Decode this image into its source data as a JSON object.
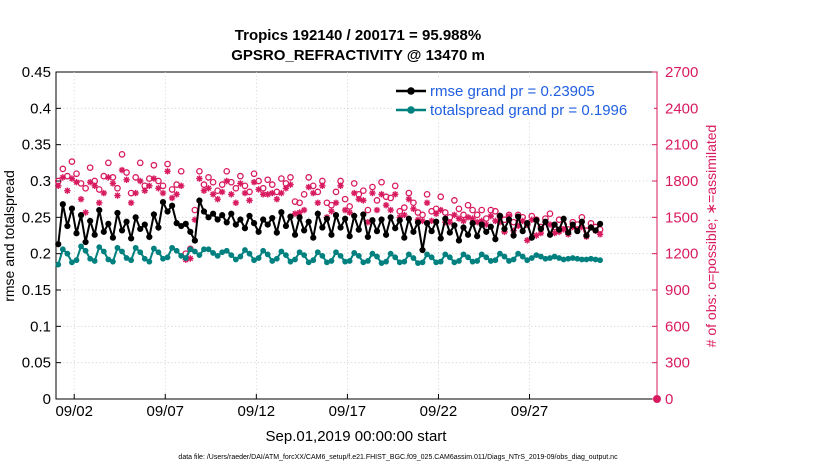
{
  "chart_data": {
    "type": "line",
    "title_line1": "Tropics 192140 / 200171 = 95.988%",
    "title_line2": "GPSRO_REFRACTIVITY @ 13470 m",
    "xlabel": "Sep.01,2019 00:00:00 start",
    "ylabel_left": "rmse and totalspread",
    "ylabel_right": "# of obs: o=possible; ∗=assimilated",
    "footer": "data file: /Users/raeder/DAI/ATM_forcXX/CAM6_setup/f.e21.FHIST_BGC.f09_025.CAM6assim.011/Diags_NTrS_2019-09/obs_diag_output.nc",
    "xlim": [
      0,
      33
    ],
    "ylim_left": [
      0,
      0.45
    ],
    "ylim_right": [
      0,
      2700
    ],
    "x_ticks": [
      1,
      6,
      11,
      16,
      21,
      26
    ],
    "x_tick_labels": [
      "09/02",
      "09/07",
      "09/12",
      "09/17",
      "09/22",
      "09/27"
    ],
    "y_left_ticks": [
      0,
      0.05,
      0.1,
      0.15,
      0.2,
      0.25,
      0.3,
      0.35,
      0.4,
      0.45
    ],
    "y_left_tick_labels": [
      "0",
      "0.05",
      "0.1",
      "0.15",
      "0.2",
      "0.25",
      "0.3",
      "0.35",
      "0.4",
      "0.45"
    ],
    "y_right_ticks": [
      0,
      300,
      600,
      900,
      1200,
      1500,
      1800,
      2100,
      2400,
      2700
    ],
    "y_right_tick_labels": [
      "0",
      "300",
      "600",
      "900",
      "1200",
      "1500",
      "1800",
      "2100",
      "2400",
      "2700"
    ],
    "legend_position": "top-right",
    "colors": {
      "rmse": "#000000",
      "spread": "#00807f",
      "obs": "#d81b60",
      "legend_text": "#1f5fe0",
      "axis": "#000000"
    },
    "series": [
      {
        "name": "rmse grand pr = 0.23905",
        "axis": "left",
        "x": [
          0.125,
          0.375,
          0.625,
          0.875,
          1.125,
          1.375,
          1.625,
          1.875,
          2.125,
          2.375,
          2.625,
          2.875,
          3.125,
          3.375,
          3.625,
          3.875,
          4.125,
          4.375,
          4.625,
          4.875,
          5.125,
          5.375,
          5.625,
          5.875,
          6.125,
          6.375,
          6.625,
          6.875,
          7.125,
          7.375,
          7.625,
          7.875,
          8.125,
          8.375,
          8.625,
          8.875,
          9.125,
          9.375,
          9.625,
          9.875,
          10.125,
          10.375,
          10.625,
          10.875,
          11.125,
          11.375,
          11.625,
          11.875,
          12.125,
          12.375,
          12.625,
          12.875,
          13.125,
          13.375,
          13.625,
          13.875,
          14.125,
          14.375,
          14.625,
          14.875,
          15.125,
          15.375,
          15.625,
          15.875,
          16.125,
          16.375,
          16.625,
          16.875,
          17.125,
          17.375,
          17.625,
          17.875,
          18.125,
          18.375,
          18.625,
          18.875,
          19.125,
          19.375,
          19.625,
          19.875,
          20.125,
          20.375,
          20.625,
          20.875,
          21.125,
          21.375,
          21.625,
          21.875,
          22.125,
          22.375,
          22.625,
          22.875,
          23.125,
          23.375,
          23.625,
          23.875,
          24.125,
          24.375,
          24.625,
          24.875,
          25.125,
          25.375,
          25.625,
          25.875,
          26.125,
          26.375,
          26.625,
          26.875,
          27.125,
          27.375,
          27.625,
          27.875,
          28.125,
          28.375,
          28.625,
          28.875,
          29.125,
          29.375,
          29.625,
          29.875
        ],
        "values": [
          0.213,
          0.268,
          0.238,
          0.262,
          0.228,
          0.253,
          0.216,
          0.245,
          0.226,
          0.26,
          0.23,
          0.241,
          0.222,
          0.256,
          0.232,
          0.244,
          0.221,
          0.25,
          0.234,
          0.24,
          0.223,
          0.254,
          0.236,
          0.271,
          0.258,
          0.266,
          0.242,
          0.238,
          0.241,
          0.23,
          0.218,
          0.273,
          0.258,
          0.25,
          0.255,
          0.247,
          0.253,
          0.243,
          0.255,
          0.24,
          0.247,
          0.235,
          0.252,
          0.242,
          0.23,
          0.247,
          0.24,
          0.249,
          0.229,
          0.257,
          0.238,
          0.251,
          0.226,
          0.25,
          0.232,
          0.244,
          0.222,
          0.255,
          0.236,
          0.248,
          0.226,
          0.253,
          0.236,
          0.248,
          0.224,
          0.252,
          0.233,
          0.254,
          0.223,
          0.246,
          0.231,
          0.247,
          0.226,
          0.25,
          0.235,
          0.246,
          0.222,
          0.248,
          0.23,
          0.243,
          0.205,
          0.242,
          0.231,
          0.244,
          0.221,
          0.248,
          0.229,
          0.239,
          0.218,
          0.236,
          0.226,
          0.242,
          0.224,
          0.24,
          0.23,
          0.237,
          0.22,
          0.252,
          0.234,
          0.247,
          0.225,
          0.251,
          0.231,
          0.242,
          0.222,
          0.246,
          0.234,
          0.244,
          0.226,
          0.24,
          0.233,
          0.248,
          0.229,
          0.24,
          0.231,
          0.244,
          0.225,
          0.236,
          0.232,
          0.241
        ]
      },
      {
        "name": "totalspread grand pr = 0.1996",
        "axis": "left",
        "x": [
          0.125,
          0.375,
          0.625,
          0.875,
          1.125,
          1.375,
          1.625,
          1.875,
          2.125,
          2.375,
          2.625,
          2.875,
          3.125,
          3.375,
          3.625,
          3.875,
          4.125,
          4.375,
          4.625,
          4.875,
          5.125,
          5.375,
          5.625,
          5.875,
          6.125,
          6.375,
          6.625,
          6.875,
          7.125,
          7.375,
          7.625,
          7.875,
          8.125,
          8.375,
          8.625,
          8.875,
          9.125,
          9.375,
          9.625,
          9.875,
          10.125,
          10.375,
          10.625,
          10.875,
          11.125,
          11.375,
          11.625,
          11.875,
          12.125,
          12.375,
          12.625,
          12.875,
          13.125,
          13.375,
          13.625,
          13.875,
          14.125,
          14.375,
          14.625,
          14.875,
          15.125,
          15.375,
          15.625,
          15.875,
          16.125,
          16.375,
          16.625,
          16.875,
          17.125,
          17.375,
          17.625,
          17.875,
          18.125,
          18.375,
          18.625,
          18.875,
          19.125,
          19.375,
          19.625,
          19.875,
          20.125,
          20.375,
          20.625,
          20.875,
          21.125,
          21.375,
          21.625,
          21.875,
          22.125,
          22.375,
          22.625,
          22.875,
          23.125,
          23.375,
          23.625,
          23.875,
          24.125,
          24.375,
          24.625,
          24.875,
          25.125,
          25.375,
          25.625,
          25.875,
          26.125,
          26.375,
          26.625,
          26.875,
          27.125,
          27.375,
          27.625,
          27.875,
          28.125,
          28.375,
          28.625,
          28.875,
          29.125,
          29.375,
          29.625,
          29.875
        ],
        "values": [
          0.185,
          0.206,
          0.2,
          0.188,
          0.191,
          0.21,
          0.204,
          0.193,
          0.19,
          0.209,
          0.203,
          0.192,
          0.189,
          0.208,
          0.203,
          0.194,
          0.191,
          0.208,
          0.202,
          0.193,
          0.189,
          0.207,
          0.202,
          0.193,
          0.195,
          0.208,
          0.204,
          0.197,
          0.194,
          0.206,
          0.203,
          0.198,
          0.206,
          0.206,
          0.201,
          0.197,
          0.202,
          0.204,
          0.198,
          0.192,
          0.196,
          0.205,
          0.2,
          0.191,
          0.194,
          0.204,
          0.199,
          0.19,
          0.193,
          0.203,
          0.198,
          0.189,
          0.192,
          0.202,
          0.198,
          0.188,
          0.191,
          0.202,
          0.197,
          0.188,
          0.19,
          0.202,
          0.197,
          0.189,
          0.19,
          0.201,
          0.197,
          0.188,
          0.19,
          0.2,
          0.196,
          0.187,
          0.189,
          0.2,
          0.195,
          0.188,
          0.189,
          0.199,
          0.194,
          0.187,
          0.188,
          0.199,
          0.195,
          0.188,
          0.189,
          0.199,
          0.195,
          0.188,
          0.19,
          0.199,
          0.195,
          0.189,
          0.19,
          0.199,
          0.195,
          0.19,
          0.191,
          0.2,
          0.196,
          0.19,
          0.192,
          0.2,
          0.196,
          0.191,
          0.194,
          0.198,
          0.196,
          0.193,
          0.194,
          0.196,
          0.194,
          0.192,
          0.193,
          0.194,
          0.193,
          0.192,
          0.192,
          0.193,
          0.192,
          0.191
        ]
      },
      {
        "name": "obs possible",
        "axis": "right",
        "marker": "circle",
        "x": [
          0.125,
          0.375,
          0.625,
          0.875,
          1.125,
          1.375,
          1.625,
          1.875,
          2.125,
          2.375,
          2.625,
          2.875,
          3.125,
          3.375,
          3.625,
          3.875,
          4.125,
          4.375,
          4.625,
          4.875,
          5.125,
          5.375,
          5.625,
          5.875,
          6.125,
          6.375,
          6.625,
          6.875,
          7.125,
          7.375,
          7.625,
          7.875,
          8.125,
          8.375,
          8.625,
          8.875,
          9.125,
          9.375,
          9.625,
          9.875,
          10.125,
          10.375,
          10.625,
          10.875,
          11.125,
          11.375,
          11.625,
          11.875,
          12.125,
          12.375,
          12.625,
          12.875,
          13.125,
          13.375,
          13.625,
          13.875,
          14.125,
          14.375,
          14.625,
          14.875,
          15.125,
          15.375,
          15.625,
          15.875,
          16.125,
          16.375,
          16.625,
          16.875,
          17.125,
          17.375,
          17.625,
          17.875,
          18.125,
          18.375,
          18.625,
          18.875,
          19.125,
          19.375,
          19.625,
          19.875,
          20.125,
          20.375,
          20.625,
          20.875,
          21.125,
          21.375,
          21.625,
          21.875,
          22.125,
          22.375,
          22.625,
          22.875,
          23.125,
          23.375,
          23.625,
          23.875,
          24.125,
          24.375,
          24.625,
          24.875,
          25.125,
          25.375,
          25.625,
          25.875,
          26.125,
          26.375,
          26.625,
          26.875,
          27.125,
          27.375,
          27.625,
          27.875,
          28.125,
          28.375,
          28.625,
          28.875,
          29.125,
          29.375,
          29.625,
          29.875
        ],
        "values": [
          1800,
          1900,
          1840,
          1960,
          1860,
          1780,
          1740,
          1910,
          1800,
          1730,
          1840,
          1950,
          1830,
          1740,
          2020,
          1870,
          1700,
          1830,
          1950,
          1760,
          1820,
          1930,
          1800,
          1760,
          1940,
          1730,
          1770,
          1880,
          1200,
          1240,
          1560,
          1880,
          1770,
          1830,
          1790,
          1720,
          1770,
          1880,
          1790,
          1740,
          1840,
          1760,
          1710,
          1860,
          1800,
          1740,
          1810,
          1770,
          1710,
          1820,
          1780,
          1830,
          1630,
          1620,
          1690,
          1830,
          1760,
          1710,
          1800,
          1620,
          1600,
          1710,
          1800,
          1650,
          1590,
          1780,
          1690,
          1720,
          1560,
          1750,
          1640,
          1790,
          1670,
          1660,
          1760,
          1550,
          1580,
          1700,
          1620,
          1540,
          1520,
          1690,
          1550,
          1570,
          1670,
          1540,
          1500,
          1640,
          1570,
          1520,
          1600,
          1560,
          1520,
          1560,
          1490,
          1560,
          1550,
          1510,
          1480,
          1520,
          1460,
          1520,
          1500,
          1440,
          1510,
          1480,
          1420,
          1490,
          1530,
          1420,
          1480,
          1440,
          1400,
          1460,
          1440,
          1500,
          1390,
          1450,
          1420,
          1400
        ]
      },
      {
        "name": "obs assimilated",
        "axis": "right",
        "marker": "asterisk",
        "x": [
          0.125,
          0.375,
          0.625,
          0.875,
          1.125,
          1.375,
          1.625,
          1.875,
          2.125,
          2.375,
          2.625,
          2.875,
          3.125,
          3.375,
          3.625,
          3.875,
          4.125,
          4.375,
          4.625,
          4.875,
          5.125,
          5.375,
          5.625,
          5.875,
          6.125,
          6.375,
          6.625,
          6.875,
          7.125,
          7.375,
          7.625,
          7.875,
          8.125,
          8.375,
          8.625,
          8.875,
          9.125,
          9.375,
          9.625,
          9.875,
          10.125,
          10.375,
          10.625,
          10.875,
          11.125,
          11.375,
          11.625,
          11.875,
          12.125,
          12.375,
          12.625,
          12.875,
          13.125,
          13.375,
          13.625,
          13.875,
          14.125,
          14.375,
          14.625,
          14.875,
          15.125,
          15.375,
          15.625,
          15.875,
          16.125,
          16.375,
          16.625,
          16.875,
          17.125,
          17.375,
          17.625,
          17.875,
          18.125,
          18.375,
          18.625,
          18.875,
          19.125,
          19.375,
          19.625,
          19.875,
          20.125,
          20.375,
          20.625,
          20.875,
          21.125,
          21.375,
          21.625,
          21.875,
          22.125,
          22.375,
          22.625,
          22.875,
          23.125,
          23.375,
          23.625,
          23.875,
          24.125,
          24.375,
          24.625,
          24.875,
          25.125,
          25.375,
          25.625,
          25.875,
          26.125,
          26.375,
          26.625,
          26.875,
          27.125,
          27.375,
          27.625,
          27.875,
          28.125,
          28.375,
          28.625,
          28.875,
          29.125,
          29.375,
          29.625,
          29.875
        ],
        "values": [
          1760,
          1830,
          1720,
          1820,
          1790,
          1650,
          1540,
          1790,
          1760,
          1620,
          1700,
          1830,
          1780,
          1680,
          1890,
          1810,
          1620,
          1700,
          1800,
          1720,
          1760,
          1820,
          1740,
          1700,
          1880,
          1660,
          1690,
          1760,
          1150,
          1160,
          1480,
          1820,
          1720,
          1740,
          1690,
          1650,
          1710,
          1800,
          1690,
          1620,
          1780,
          1700,
          1640,
          1790,
          1730,
          1690,
          1690,
          1700,
          1650,
          1700,
          1740,
          1770,
          1530,
          1540,
          1560,
          1750,
          1700,
          1620,
          1760,
          1500,
          1550,
          1620,
          1760,
          1560,
          1540,
          1700,
          1650,
          1640,
          1460,
          1700,
          1560,
          1690,
          1600,
          1560,
          1690,
          1500,
          1520,
          1650,
          1570,
          1480,
          1470,
          1620,
          1470,
          1530,
          1560,
          1460,
          1460,
          1520,
          1490,
          1470,
          1500,
          1490,
          1460,
          1470,
          1440,
          1510,
          1470,
          1460,
          1380,
          1510,
          1390,
          1430,
          1470,
          1310,
          1480,
          1350,
          1370,
          1460,
          1440,
          1370,
          1380,
          1400,
          1360,
          1420,
          1400,
          1420,
          1340,
          1420,
          1390,
          1360
        ]
      }
    ]
  }
}
